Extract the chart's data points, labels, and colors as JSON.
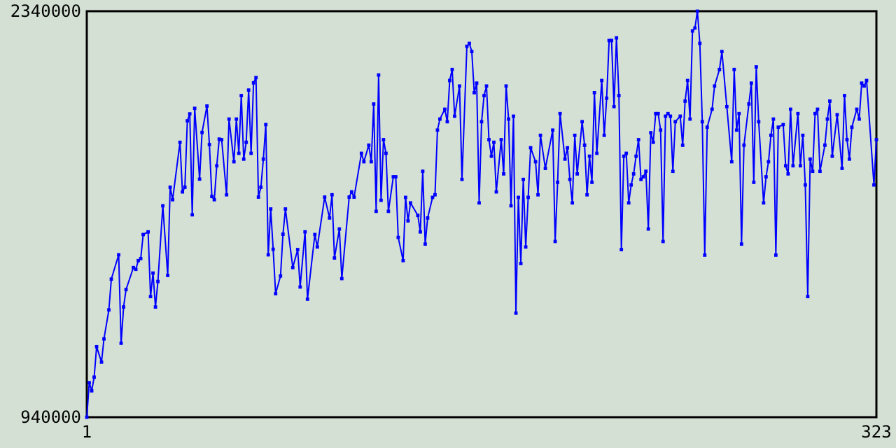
{
  "chart_data": {
    "type": "line",
    "marker": "square",
    "line_style": "solid",
    "xlim": [
      1,
      323
    ],
    "xticks": [
      1,
      323
    ],
    "ylim": [
      940000,
      2340000
    ],
    "yticks": [
      940000,
      2340000
    ],
    "x": [
      1,
      2,
      3,
      4,
      5,
      7,
      8,
      10,
      11,
      14,
      15,
      16,
      17,
      20,
      21,
      22,
      23,
      24,
      26,
      27,
      28,
      29,
      30,
      32,
      34,
      35,
      36,
      39,
      40,
      41,
      42,
      43,
      44,
      45,
      47,
      48,
      50,
      51,
      52,
      53,
      54,
      55,
      56,
      58,
      59,
      61,
      62,
      63,
      64,
      65,
      66,
      67,
      68,
      69,
      70,
      71,
      72,
      73,
      74,
      75,
      76,
      77,
      78,
      80,
      81,
      82,
      85,
      87,
      88,
      90,
      91,
      94,
      95,
      98,
      100,
      101,
      102,
      104,
      105,
      108,
      109,
      110,
      113,
      114,
      116,
      117,
      118,
      119,
      120,
      121,
      122,
      123,
      124,
      126,
      127,
      128,
      130,
      131,
      132,
      133,
      136,
      137,
      138,
      139,
      140,
      142,
      143,
      144,
      145,
      147,
      148,
      149,
      150,
      151,
      153,
      154,
      156,
      157,
      158,
      159,
      160,
      161,
      162,
      163,
      164,
      165,
      166,
      167,
      168,
      170,
      171,
      172,
      173,
      174,
      175,
      176,
      177,
      178,
      179,
      180,
      181,
      182,
      184,
      185,
      186,
      188,
      191,
      192,
      193,
      194,
      196,
      197,
      198,
      199,
      200,
      201,
      203,
      204,
      205,
      206,
      207,
      208,
      209,
      211,
      212,
      213,
      214,
      215,
      216,
      217,
      218,
      219,
      220,
      221,
      222,
      223,
      224,
      225,
      226,
      227,
      228,
      229,
      230,
      231,
      232,
      233,
      234,
      235,
      236,
      237,
      238,
      239,
      240,
      241,
      243,
      244,
      245,
      246,
      247,
      248,
      249,
      250,
      251,
      252,
      253,
      254,
      256,
      257,
      259,
      260,
      262,
      264,
      265,
      266,
      267,
      268,
      269,
      271,
      272,
      273,
      274,
      275,
      277,
      278,
      279,
      280,
      281,
      282,
      283,
      285,
      286,
      287,
      288,
      289,
      291,
      292,
      293,
      294,
      295,
      296,
      297,
      298,
      299,
      300,
      302,
      303,
      304,
      305,
      307,
      309,
      310,
      311,
      312,
      313,
      315,
      316,
      317,
      318,
      319,
      322,
      323
    ],
    "series": [
      {
        "color": "#0000ff",
        "values": [
          940000,
          1059000,
          1031000,
          1078000,
          1183000,
          1130000,
          1210000,
          1310000,
          1416000,
          1500000,
          1195000,
          1320000,
          1380000,
          1456000,
          1450000,
          1480000,
          1487000,
          1570000,
          1579000,
          1356000,
          1437000,
          1320000,
          1408000,
          1669000,
          1429000,
          1733000,
          1690000,
          1888000,
          1717000,
          1733000,
          1962000,
          1986000,
          1638000,
          2005000,
          1761000,
          1922000,
          2013000,
          1880000,
          1701000,
          1690000,
          1807000,
          1899000,
          1897000,
          1707000,
          1968000,
          1821000,
          1968000,
          1850000,
          2049000,
          1830000,
          1888000,
          2068000,
          1850000,
          2093000,
          2111000,
          1699000,
          1733000,
          1830000,
          1949000,
          1500000,
          1658000,
          1519000,
          1366000,
          1427000,
          1571000,
          1658000,
          1456000,
          1518000,
          1389000,
          1579000,
          1347000,
          1570000,
          1527000,
          1699000,
          1627000,
          1707000,
          1489000,
          1589000,
          1418000,
          1699000,
          1717000,
          1699000,
          1850000,
          1821000,
          1878000,
          1821000,
          2020000,
          1650000,
          2120000,
          1688000,
          1897000,
          1850000,
          1650000,
          1769000,
          1769000,
          1560000,
          1480000,
          1698000,
          1617000,
          1679000,
          1636000,
          1579000,
          1788000,
          1537000,
          1627000,
          1698000,
          1707000,
          1930000,
          1968000,
          2002000,
          1959000,
          2101000,
          2139000,
          1978000,
          2082000,
          1760000,
          2219000,
          2229000,
          2201000,
          2059000,
          2092000,
          1679000,
          1959000,
          2049000,
          2082000,
          1897000,
          1840000,
          1888000,
          1717000,
          1897000,
          1779000,
          2082000,
          1968000,
          1669000,
          1978000,
          1299000,
          1698000,
          1470000,
          1760000,
          1527000,
          1698000,
          1869000,
          1821000,
          1707000,
          1912000,
          1798000,
          1930000,
          1546000,
          1750000,
          1987000,
          1830000,
          1869000,
          1760000,
          1679000,
          1912000,
          1779000,
          1959000,
          1878000,
          1707000,
          1840000,
          1750000,
          2059000,
          1850000,
          2101000,
          1912000,
          2040000,
          2239000,
          2239000,
          2011000,
          2248000,
          2049000,
          1518000,
          1840000,
          1850000,
          1679000,
          1741000,
          1779000,
          1840000,
          1897000,
          1760000,
          1769000,
          1788000,
          1589000,
          1921000,
          1888000,
          1987000,
          1987000,
          1930000,
          1546000,
          1978000,
          1987000,
          1978000,
          1788000,
          1959000,
          1978000,
          1878000,
          2030000,
          2101000,
          1968000,
          2272000,
          2282000,
          2340000,
          2229000,
          1959000,
          1499000,
          1940000,
          2002000,
          2082000,
          2139000,
          2201000,
          2011000,
          1821000,
          2139000,
          1930000,
          1987000,
          1537000,
          1878000,
          2020000,
          2092000,
          1750000,
          2148000,
          1959000,
          1679000,
          1769000,
          1821000,
          1912000,
          1968000,
          1499000,
          1940000,
          1949000,
          1807000,
          1779000,
          2002000,
          1807000,
          1987000,
          1807000,
          1912000,
          1741000,
          1356000,
          1830000,
          1788000,
          1987000,
          2002000,
          1788000,
          1878000,
          1968000,
          2030000,
          1840000,
          1983000,
          1798000,
          2049000,
          1897000,
          1830000,
          1940000,
          2002000,
          1968000,
          2092000,
          2082000,
          2101000,
          1741000,
          1897000
        ]
      }
    ]
  }
}
